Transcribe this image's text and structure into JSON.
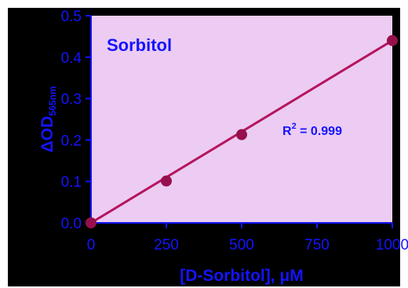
{
  "chart_data": {
    "type": "scatter",
    "title": "Sorbitol",
    "xlabel": "[D-Sorbitol], μM",
    "ylabel": "ΔOD",
    "ylabel_subscript": "565nm",
    "xlim": [
      0,
      1000
    ],
    "ylim": [
      0,
      0.5
    ],
    "x_ticks": [
      0,
      250,
      500,
      750,
      1000
    ],
    "y_ticks": [
      0.0,
      0.1,
      0.2,
      0.3,
      0.4,
      0.5
    ],
    "x_tick_labels": [
      "0",
      "250",
      "500",
      "750",
      "1000"
    ],
    "y_tick_labels": [
      "0.0",
      "0.1",
      "0.2",
      "0.3",
      "0.4",
      "0.5"
    ],
    "grid": false,
    "legend": "none",
    "series": [
      {
        "x": [
          0,
          250,
          500,
          1000
        ],
        "y": [
          0.0,
          0.101,
          0.213,
          0.44
        ]
      }
    ],
    "fit_line": {
      "x": [
        0,
        1000
      ],
      "y": [
        0.0,
        0.44
      ]
    },
    "annotation": {
      "text_main": "R",
      "text_sup": "2",
      "text_rest": " = 0.999"
    },
    "colors": {
      "page_background": "#ffffff",
      "outer_background": "#000000",
      "plot_background": "#ecccf2",
      "axis": "#1414ff",
      "text": "#1414ff",
      "data": "#b5145e",
      "marker": "#96104c"
    }
  }
}
